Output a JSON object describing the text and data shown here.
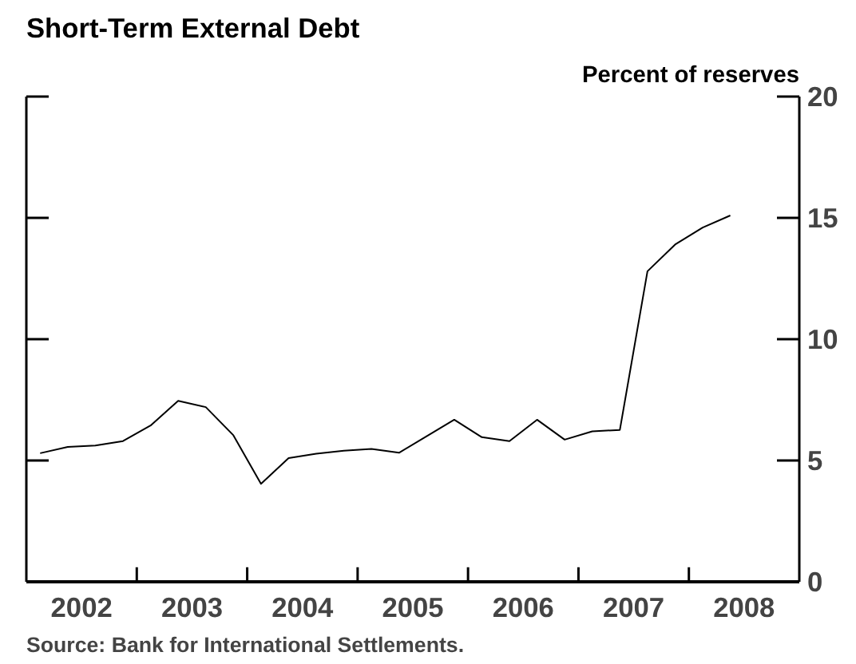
{
  "chart_data": {
    "type": "line",
    "title": "Short-Term External Debt",
    "ylabel": "Percent of reserves",
    "annotations": [
      "Source: Bank for International Settlements."
    ],
    "x": [
      2002.125,
      2002.375,
      2002.625,
      2002.875,
      2003.125,
      2003.375,
      2003.625,
      2003.875,
      2004.125,
      2004.375,
      2004.625,
      2004.875,
      2005.125,
      2005.375,
      2005.625,
      2005.875,
      2006.125,
      2006.375,
      2006.625,
      2006.875,
      2007.125,
      2007.375,
      2007.625,
      2007.875,
      2008.125,
      2008.375
    ],
    "series": [
      {
        "color": "#000000",
        "values": [
          5.3,
          5.56,
          5.62,
          5.8,
          6.44,
          7.46,
          7.2,
          6.04,
          4.04,
          5.1,
          5.28,
          5.4,
          5.48,
          5.32,
          6.0,
          6.68,
          5.96,
          5.8,
          6.68,
          5.86,
          6.2,
          6.26,
          12.8,
          13.9,
          14.6,
          15.1
        ]
      }
    ],
    "xlim": [
      2002,
      2009
    ],
    "xticks": [
      {
        "value": 2003,
        "label": null
      },
      {
        "value": 2004,
        "label": null
      },
      {
        "value": 2005,
        "label": null
      },
      {
        "value": 2006,
        "label": null
      },
      {
        "value": 2007,
        "label": null
      },
      {
        "value": 2008,
        "label": null
      },
      {
        "value": 2002.5,
        "label": "2002"
      },
      {
        "value": 2003.5,
        "label": "2003"
      },
      {
        "value": 2004.5,
        "label": "2004"
      },
      {
        "value": 2005.5,
        "label": "2005"
      },
      {
        "value": 2006.5,
        "label": "2006"
      },
      {
        "value": 2007.5,
        "label": "2007"
      },
      {
        "value": 2008.5,
        "label": "2008"
      }
    ],
    "ylim": [
      0,
      20
    ],
    "yticks": [
      0,
      5,
      10,
      15,
      20
    ],
    "grid": false,
    "marker": "none",
    "line_style": "solid"
  }
}
